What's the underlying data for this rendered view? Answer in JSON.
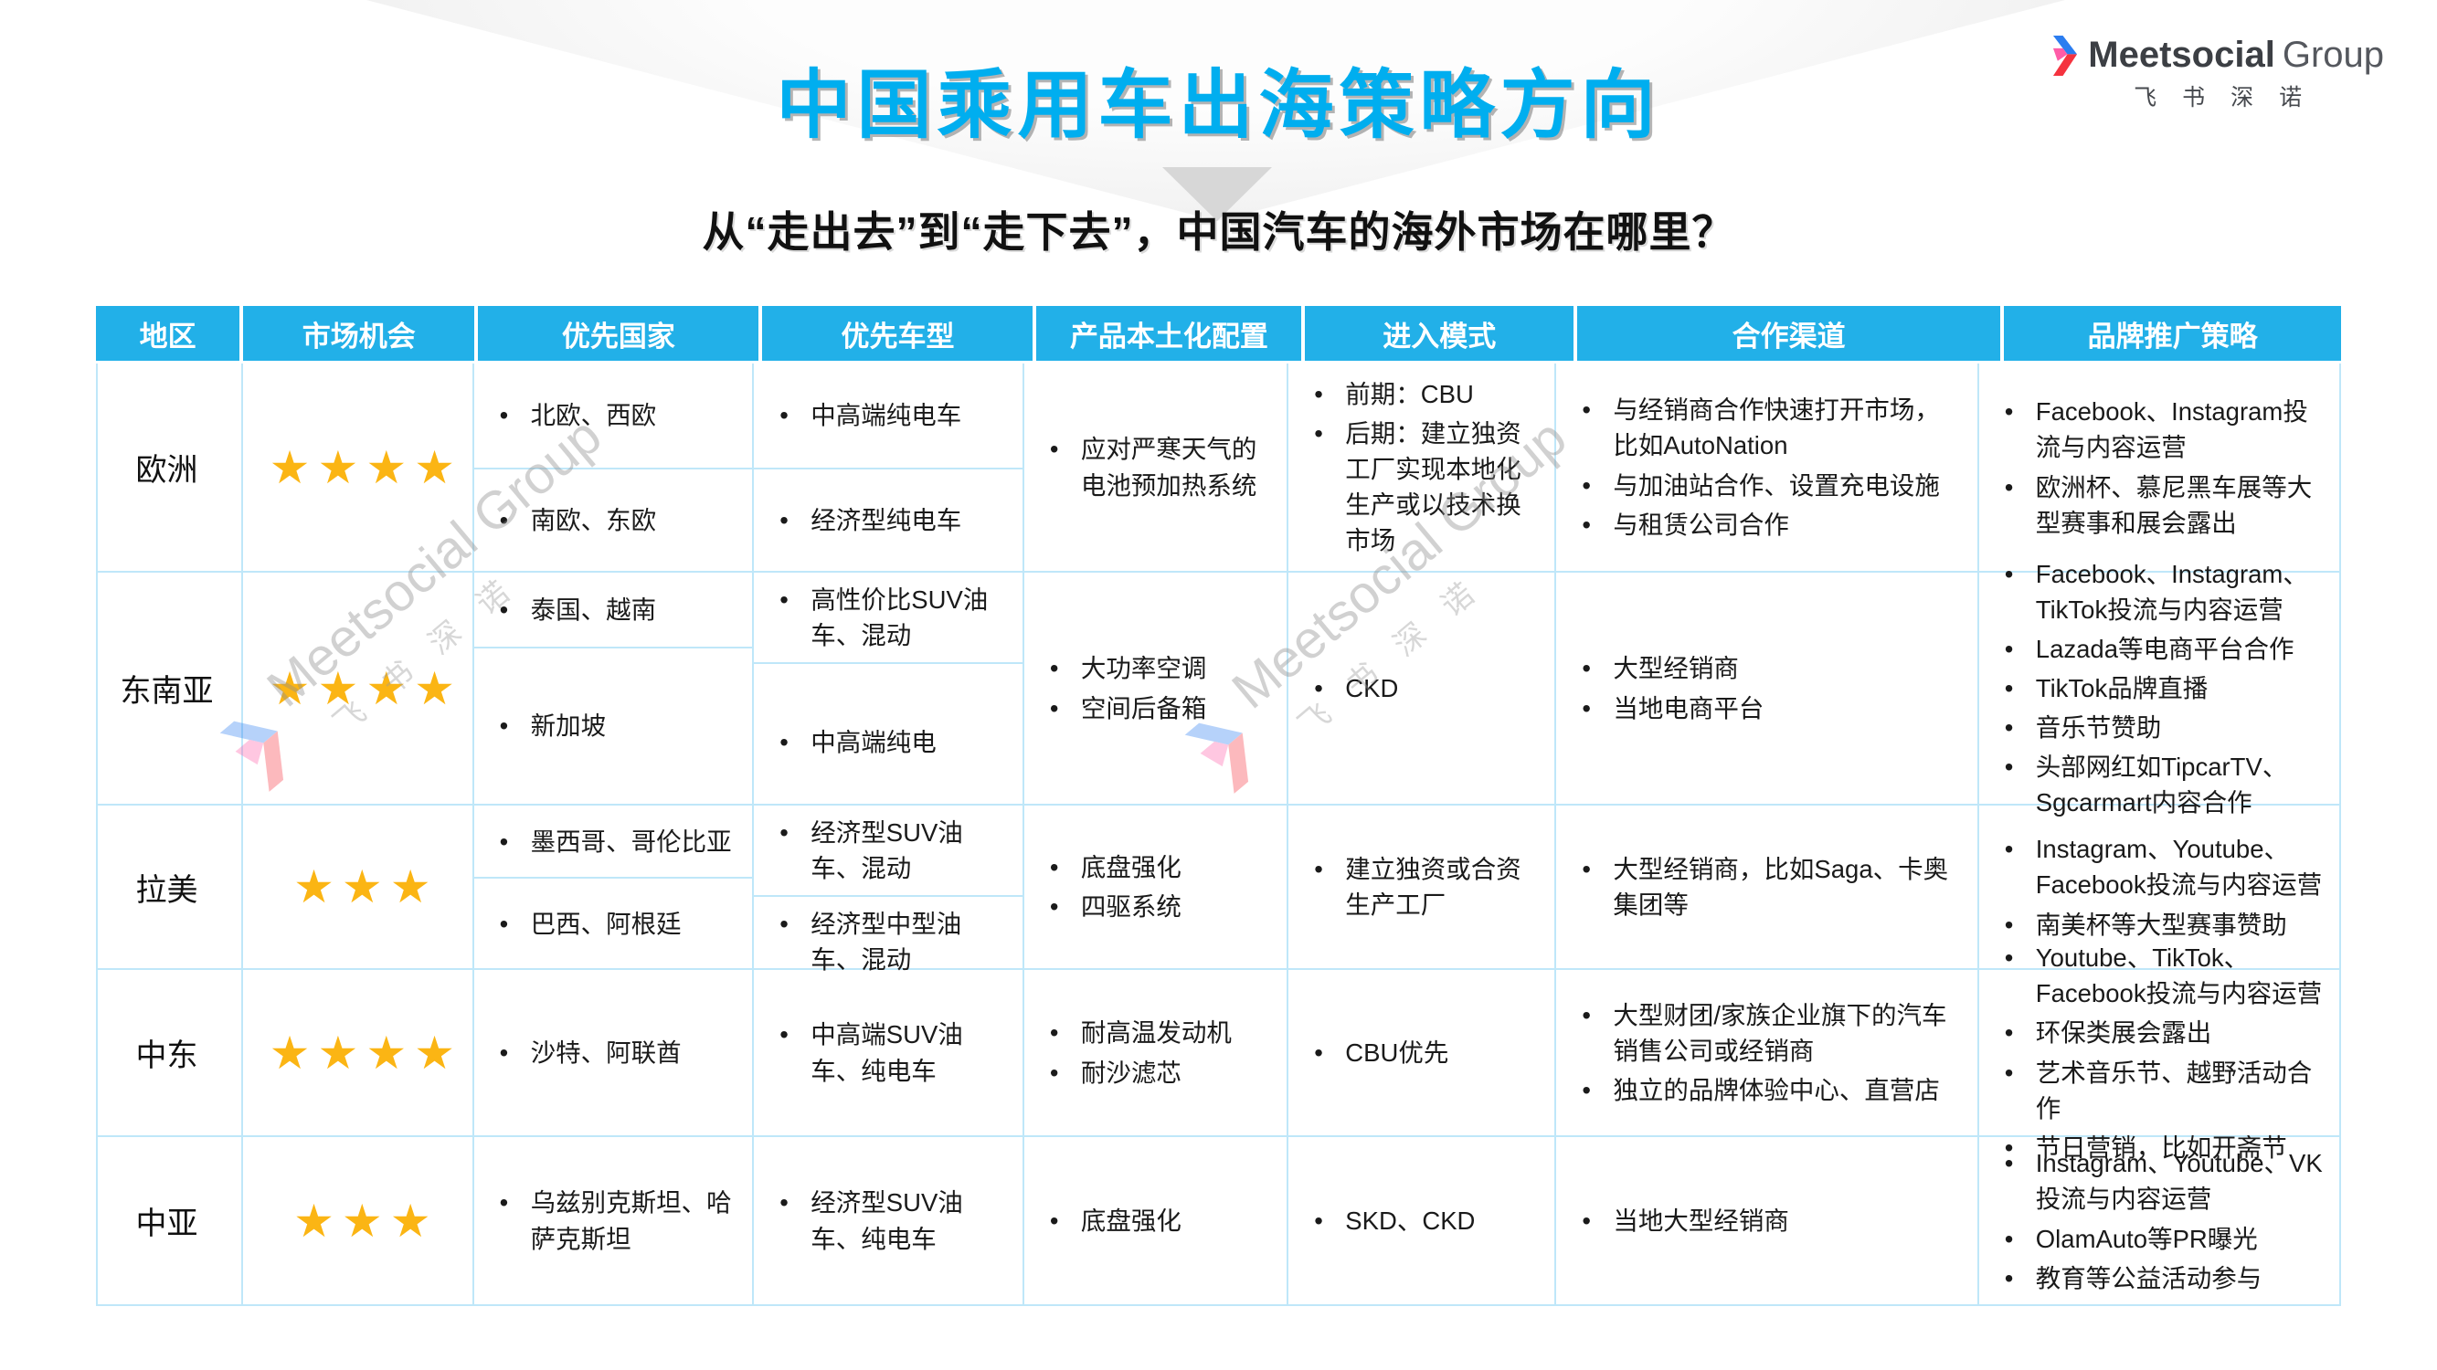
{
  "header": {
    "title": "中国乘用车出海策略方向",
    "subtitle": "从“走出去”到“走下去”，中国汽车的海外市场在哪里？",
    "logo": {
      "brand": "Meetsocial",
      "brand2": "Group",
      "tagline": "飞书深诺"
    }
  },
  "watermark": {
    "text": "Meetsocial Group",
    "tagline": "飞书深诺"
  },
  "colors": {
    "title_accent": "#00AEEF",
    "table_header_bg": "#22B0E8",
    "table_border": "#BFE7F9",
    "star": "#FBB514"
  },
  "table": {
    "columns": [
      "地区",
      "市场机会",
      "优先国家",
      "优先车型",
      "产品本土化配置",
      "进入模式",
      "合作渠道",
      "品牌推广策略"
    ],
    "rows": [
      {
        "region": "欧洲",
        "stars": 4,
        "countries": [
          [
            "北欧、西欧"
          ],
          [
            "南欧、东欧"
          ]
        ],
        "models": [
          [
            "中高端纯电车"
          ],
          [
            "经济型纯电车"
          ]
        ],
        "localization": [
          "应对严寒天气的电池预加热系统"
        ],
        "entry": [
          "前期：CBU",
          "后期：建立独资工厂实现本地化生产或以技术换市场"
        ],
        "channels": [
          "与经销商合作快速打开市场，比如AutoNation",
          "与加油站合作、设置充电设施",
          "与租赁公司合作"
        ],
        "branding": [
          "Facebook、Instagram投流与内容运营",
          "欧洲杯、慕尼黑车展等大型赛事和展会露出"
        ]
      },
      {
        "region": "东南亚",
        "stars": 4,
        "countries": [
          [
            "泰国、越南"
          ],
          [
            "新加坡"
          ]
        ],
        "models": [
          [
            "高性价比SUV油车、混动"
          ],
          [
            "中高端纯电"
          ]
        ],
        "localization": [
          "大功率空调",
          "空间后备箱"
        ],
        "entry": [
          "CKD"
        ],
        "channels": [
          "大型经销商",
          "当地电商平台"
        ],
        "branding": [
          "Facebook、Instagram、TikTok投流与内容运营",
          "Lazada等电商平台合作",
          "TikTok品牌直播",
          "音乐节赞助",
          "头部网红如TipcarTV、Sgcarmart内容合作"
        ]
      },
      {
        "region": "拉美",
        "stars": 3,
        "countries": [
          [
            "墨西哥、哥伦比亚"
          ],
          [
            "巴西、阿根廷"
          ]
        ],
        "models": [
          [
            "经济型SUV油车、混动"
          ],
          [
            "经济型中型油车、混动"
          ]
        ],
        "localization": [
          "底盘强化",
          "四驱系统"
        ],
        "entry": [
          "建立独资或合资生产工厂"
        ],
        "channels": [
          "大型经销商，比如Saga、卡奥集团等"
        ],
        "branding": [
          "Instagram、Youtube、Facebook投流与内容运营",
          "南美杯等大型赛事赞助"
        ]
      },
      {
        "region": "中东",
        "stars": 4,
        "countries": [
          [
            "沙特、阿联酋"
          ]
        ],
        "models": [
          [
            "中高端SUV油车、纯电车"
          ]
        ],
        "localization": [
          "耐高温发动机",
          "耐沙滤芯"
        ],
        "entry": [
          "CBU优先"
        ],
        "channels": [
          "大型财团/家族企业旗下的汽车销售公司或经销商",
          "独立的品牌体验中心、直营店"
        ],
        "branding": [
          "Youtube、TikTok、Facebook投流与内容运营",
          "环保类展会露出",
          "艺术音乐节、越野活动合作",
          "节日营销，比如开斋节"
        ]
      },
      {
        "region": "中亚",
        "stars": 3,
        "countries": [
          [
            "乌兹别克斯坦、哈萨克斯坦"
          ]
        ],
        "models": [
          [
            "经济型SUV油车、纯电车"
          ]
        ],
        "localization": [
          "底盘强化"
        ],
        "entry": [
          "SKD、CKD"
        ],
        "channels": [
          "当地大型经销商"
        ],
        "branding": [
          "Instagram、Youtube、VK投流与内容运营",
          "OlamAuto等PR曝光",
          "教育等公益活动参与"
        ]
      }
    ]
  }
}
